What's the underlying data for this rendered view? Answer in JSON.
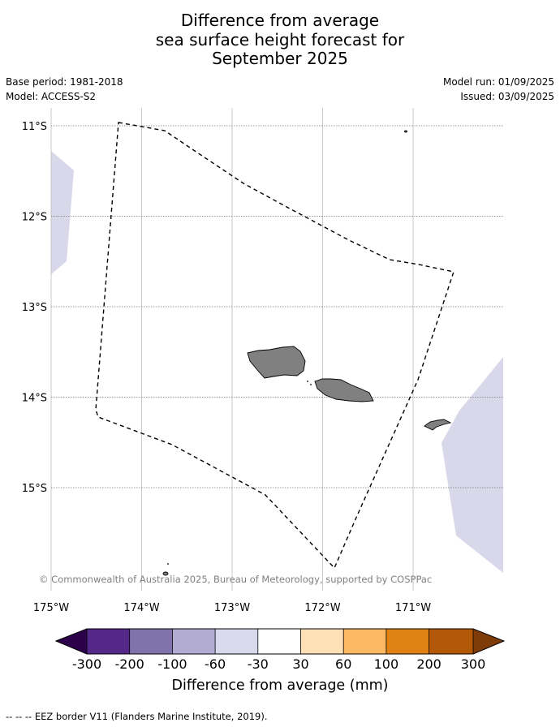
{
  "title": {
    "line1": "Difference from average",
    "line2": "sea surface height forecast for",
    "line3": "September 2025"
  },
  "meta": {
    "base_period": "Base period: 1981-2018",
    "model": "Model: ACCESS-S2",
    "model_run": "Model run: 01/09/2025",
    "issued": "Issued: 03/09/2025"
  },
  "map": {
    "lat_labels": [
      "11°S",
      "12°S",
      "13°S",
      "14°S",
      "15°S"
    ],
    "lon_labels": [
      "175°W",
      "174°W",
      "173°W",
      "172°W",
      "171°W"
    ],
    "credit": "© Commonwealth of Australia 2025, Bureau of Meteorology, supported by COSPPac",
    "colors": {
      "land": "#808080",
      "anomaly_-60_-30": "#d8d8ea",
      "eez_border": "#000000"
    }
  },
  "colorbar": {
    "tick_labels": [
      "-300",
      "-200",
      "-100",
      "-60",
      "-30",
      "30",
      "60",
      "100",
      "200",
      "300"
    ],
    "label": "Difference from average (mm)",
    "colors": [
      "#2d004b",
      "#542788",
      "#8073ac",
      "#b2abd2",
      "#d8daeb",
      "#ffffff",
      "#fee0b6",
      "#fdb863",
      "#e08214",
      "#b35806",
      "#7f3b08"
    ]
  },
  "footnote": "--  --  -- EEZ border V11 (Flanders Marine Institute, 2019)."
}
